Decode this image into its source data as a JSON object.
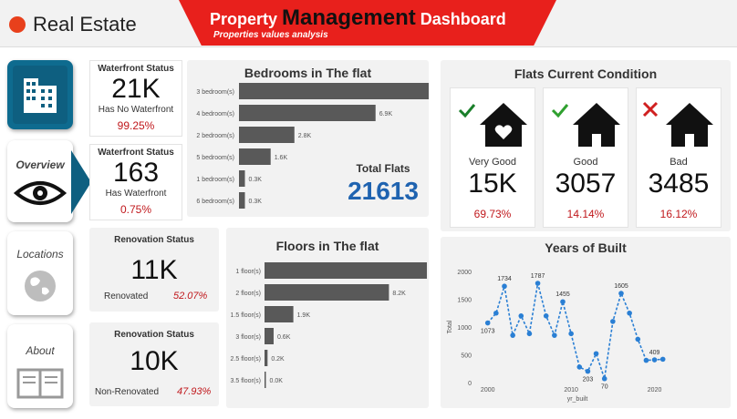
{
  "app": {
    "title": "Real Estate"
  },
  "header": {
    "title_part1": "Property ",
    "title_part2": "Management",
    "title_part3": " Dashboard",
    "subtitle": "Properties values analysis"
  },
  "nav": {
    "overview": "Overview",
    "locations": "Locations",
    "about": "About"
  },
  "waterfront": {
    "no": {
      "title": "Waterfront Status",
      "value": "21K",
      "label": "Has No Waterfront",
      "pct": "99.25%"
    },
    "yes": {
      "title": "Waterfront Status",
      "value": "163",
      "label": "Has Waterfront",
      "pct": "0.75%"
    }
  },
  "renovation": {
    "renovated": {
      "title": "Renovation Status",
      "value": "11K",
      "label": "Renovated",
      "pct": "52.07%"
    },
    "non": {
      "title": "Renovation Status",
      "value": "10K",
      "label": "Non-Renovated",
      "pct": "47.93%"
    }
  },
  "total_flats": {
    "label": "Total Flats",
    "value": "21613"
  },
  "condition": {
    "title": "Flats Current Condition",
    "very_good": {
      "label": "Very Good",
      "value": "15K",
      "pct": "69.73%"
    },
    "good": {
      "label": "Good",
      "value": "3057",
      "pct": "14.14%"
    },
    "bad": {
      "label": "Bad",
      "value": "3485",
      "pct": "16.12%"
    }
  },
  "colors": {
    "accent_red": "#e8201c",
    "bar": "#595959",
    "line": "#2a7fd4",
    "pct_red": "#c0181c",
    "total_blue": "#1f63b0"
  },
  "chart_data": [
    {
      "type": "bar",
      "title": "Bedrooms in The flat",
      "categories": [
        "3 bedroom(s)",
        "4 bedroom(s)",
        "2 bedroom(s)",
        "5 bedroom(s)",
        "1 bedroom(s)",
        "6 bedroom(s)"
      ],
      "values": [
        9.8,
        6.9,
        2.8,
        1.6,
        0.3,
        0.3
      ],
      "labels": [
        "9.8K",
        "6.9K",
        "2.8K",
        "1.6K",
        "0.3K",
        "0.3K"
      ],
      "xlim": [
        0,
        10
      ]
    },
    {
      "type": "bar",
      "title": "Floors in The flat",
      "categories": [
        "1 floor(s)",
        "2 floor(s)",
        "1.5 floor(s)",
        "3 floor(s)",
        "2.5 floor(s)",
        "3.5 floor(s)"
      ],
      "values": [
        10.7,
        8.2,
        1.9,
        0.6,
        0.2,
        0.0
      ],
      "labels": [
        "10.7K",
        "8.2K",
        "1.9K",
        "0.6K",
        "0.2K",
        "0.0K"
      ],
      "xlim": [
        0,
        11
      ]
    },
    {
      "type": "line",
      "title": "Years of Built",
      "xlabel": "yr_built",
      "ylabel": "Total",
      "ylim": [
        0,
        2000
      ],
      "xlim": [
        1998.5,
        2023
      ],
      "yticks": [
        "0",
        "500",
        "1000",
        "1500",
        "2000"
      ],
      "xticks": [
        "2000",
        "2010",
        "2020"
      ],
      "series": [
        {
          "x": [
            2000,
            2001,
            2002,
            2003,
            2004,
            2005,
            2006,
            2007,
            2008,
            2009,
            2010,
            2011,
            2012,
            2013,
            2014,
            2015,
            2016,
            2017,
            2018,
            2019,
            2020,
            2021
          ],
          "y": [
            1073,
            1250,
            1734,
            850,
            1200,
            880,
            1787,
            1200,
            850,
            1455,
            880,
            280,
            203,
            520,
            70,
            1100,
            1605,
            1250,
            780,
            400,
            409,
            420
          ],
          "point_labels": {
            "0": "1073",
            "2": "1734",
            "6": "1787",
            "9": "1455",
            "12": "203",
            "14": "70",
            "16": "1605",
            "20": "409"
          }
        }
      ]
    }
  ]
}
